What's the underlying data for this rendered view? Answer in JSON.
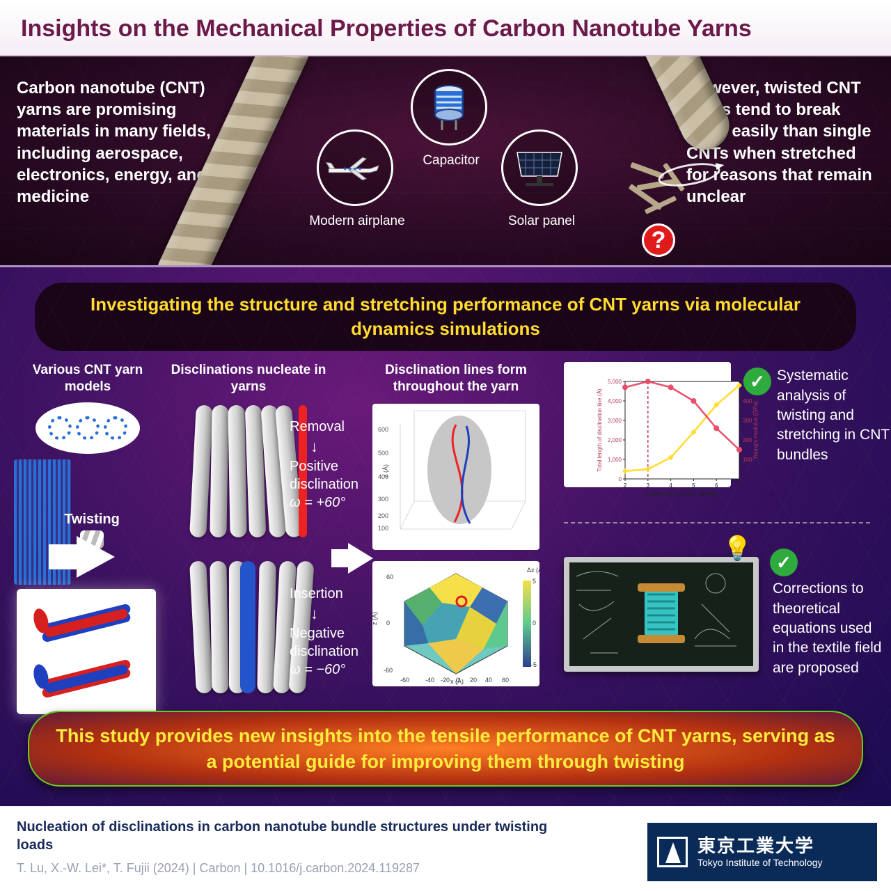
{
  "title": "Insights on the Mechanical Properties of Carbon Nanotube Yarns",
  "title_color": "#6b1a4a",
  "top": {
    "left_text": "Carbon nanotube (CNT) yarns are promising materials in many fields, including aerospace, electronics, energy, and medicine",
    "right_text": "However, twisted CNT yarns tend to break more easily than single CNTs when stretched for reasons that remain unclear",
    "qmark": "?",
    "icons": {
      "capacitor_label": "Capacitor",
      "airplane_label": "Modern airplane",
      "solar_label": "Solar panel"
    },
    "bg_gradient": [
      "#4a1238",
      "#2a0a24",
      "#180515"
    ],
    "rope_colors": [
      "#c9bda4",
      "#a89a7e"
    ]
  },
  "subtitle": "Investigating the structure and stretching performance of CNT yarns via molecular dynamics simulations",
  "subtitle_color": "#ffdc2e",
  "columns": {
    "c1_title": "Various CNT yarn models",
    "c2_title": "Disclinations nucleate in yarns",
    "c3_title": "Disclination lines form throughout the yarn",
    "twist_label": "Twisting",
    "removal": "Removal",
    "positive": "Positive disclination",
    "omega_pos": "ω = +60°",
    "insertion": "Insertion",
    "negative": "Negative disclination",
    "omega_neg": "ω = −60°"
  },
  "chart": {
    "type": "dual-axis-line",
    "x_label": "Layers of the CNT bundle",
    "y1_label": "Total length of disclination line (Å)",
    "y2_label": "Young's modulus (GPa)",
    "x_values": [
      2,
      3,
      4,
      5,
      6,
      7
    ],
    "series": [
      {
        "name": "disclination_length",
        "color": "#ffdc2e",
        "marker": "diamond",
        "values": [
          400,
          500,
          1100,
          2400,
          3800,
          4800
        ],
        "axis": "left"
      },
      {
        "name": "youngs_modulus",
        "color": "#e94f6a",
        "marker": "circle",
        "values": [
          470,
          500,
          470,
          400,
          260,
          150
        ],
        "axis": "right"
      }
    ],
    "y1_lim": [
      0,
      5000
    ],
    "y1_ticks": [
      0,
      1000,
      2000,
      3000,
      4000,
      5000
    ],
    "y2_lim": [
      0,
      500
    ],
    "y2_ticks": [
      100,
      200,
      300,
      400,
      500
    ],
    "xlim": [
      2,
      7
    ],
    "vline_x": 3,
    "vline_style": "dashed",
    "vline_color": "#c43a56",
    "grid_color": "#cccccc",
    "bg": "#ffffff",
    "axis_color": "#222222",
    "label_fontsize": 9
  },
  "findings": {
    "f1": "Systematic analysis of twisting and stretching in CNT bundles",
    "f2": "Corrections to theoretical equations used in the textile field are proposed",
    "check_color": "#2faa3d"
  },
  "conclusion": "This study provides new insights into the tensile performance of CNT yarns, serving as a potential guide for improving them through twisting",
  "conclusion_text_color": "#ffec3d",
  "footer": {
    "ref_title": "Nucleation of disclinations in carbon nanotube bundle structures under twisting loads",
    "ref_cite": "T. Lu, X.-W. Lei*, T. Fujii (2024)  |  Carbon  |  10.1016/j.carbon.2024.119287",
    "logo_jp": "東京工業大学",
    "logo_en": "Tokyo Institute of Technology",
    "logo_bg": "#0a2a58"
  },
  "palette": {
    "purple_bg": [
      "#6a1a7a",
      "#3c1260",
      "#1a0b50"
    ],
    "red": "#e22222",
    "blue": "#2454c9",
    "tube_gray": "#cfcfcf",
    "white": "#ffffff"
  },
  "bundle_render": {
    "top": {
      "core": "#d62020",
      "shell": "#1e3fbe"
    },
    "bottom": {
      "core": "#1e3fbe",
      "shell": "#d62020"
    }
  }
}
